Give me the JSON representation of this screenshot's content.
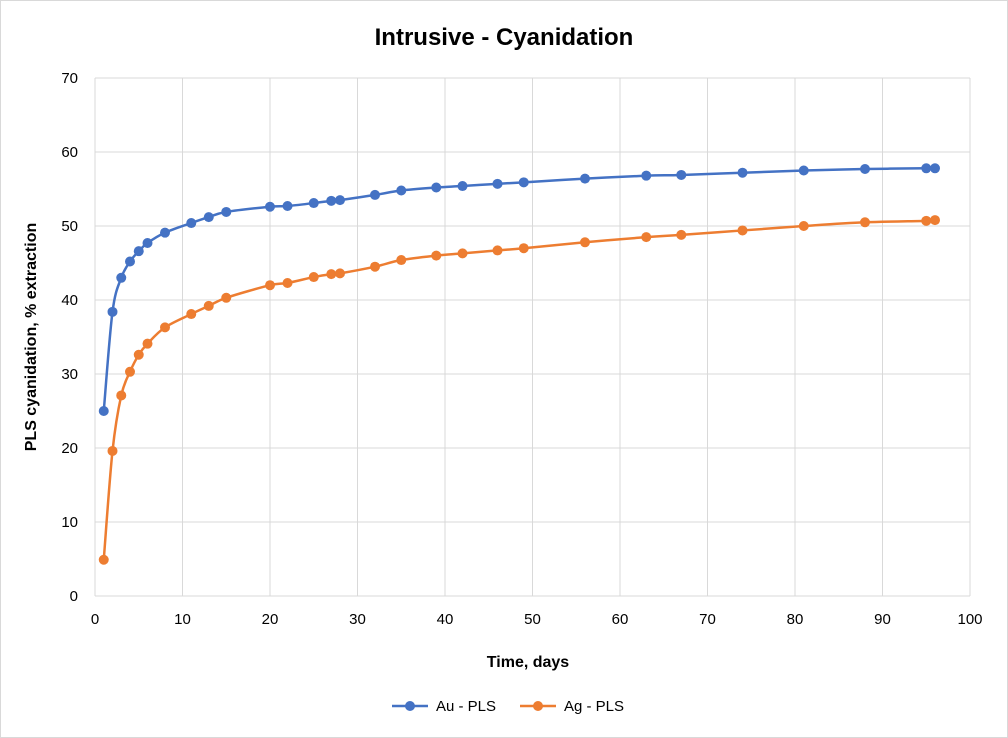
{
  "chart_data": {
    "type": "line",
    "title": "Intrusive - Cyanidation",
    "xlabel": "Time, days",
    "ylabel": "PLS cyanidation, % extraction",
    "xlim": [
      0,
      100
    ],
    "ylim": [
      0,
      70
    ],
    "xticks": [
      0,
      10,
      20,
      30,
      40,
      50,
      60,
      70,
      80,
      90,
      100
    ],
    "yticks": [
      0,
      10,
      20,
      30,
      40,
      50,
      60,
      70
    ],
    "grid": true,
    "legend_position": "bottom",
    "series": [
      {
        "name": "Au - PLS",
        "color": "#4472c4",
        "x": [
          1,
          2,
          3,
          4,
          5,
          6,
          8,
          11,
          13,
          15,
          20,
          22,
          25,
          27,
          28,
          32,
          35,
          39,
          42,
          46,
          49,
          56,
          63,
          67,
          74,
          81,
          88,
          95,
          96
        ],
        "y": [
          25.0,
          38.4,
          43.0,
          45.2,
          46.6,
          47.7,
          49.1,
          50.4,
          51.2,
          51.9,
          52.6,
          52.7,
          53.1,
          53.4,
          53.5,
          54.2,
          54.8,
          55.2,
          55.4,
          55.7,
          55.9,
          56.4,
          56.8,
          56.9,
          57.2,
          57.5,
          57.7,
          57.8,
          57.8
        ]
      },
      {
        "name": "Ag - PLS",
        "color": "#ed7d31",
        "x": [
          1,
          2,
          3,
          4,
          5,
          6,
          8,
          11,
          13,
          15,
          20,
          22,
          25,
          27,
          28,
          32,
          35,
          39,
          42,
          46,
          49,
          56,
          63,
          67,
          74,
          81,
          88,
          95,
          96
        ],
        "y": [
          4.9,
          19.6,
          27.1,
          30.3,
          32.6,
          34.1,
          36.3,
          38.1,
          39.2,
          40.3,
          42.0,
          42.3,
          43.1,
          43.5,
          43.6,
          44.5,
          45.4,
          46.0,
          46.3,
          46.7,
          47.0,
          47.8,
          48.5,
          48.8,
          49.4,
          50.0,
          50.5,
          50.7,
          50.8
        ]
      }
    ]
  }
}
